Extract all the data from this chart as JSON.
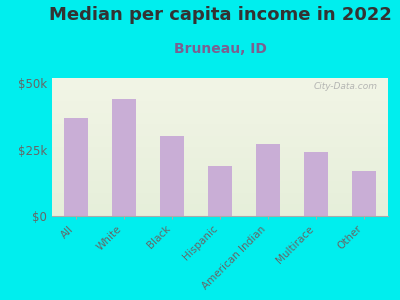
{
  "title": "Median per capita income in 2022",
  "subtitle": "Bruneau, ID",
  "categories": [
    "All",
    "White",
    "Black",
    "Hispanic",
    "American Indian",
    "Multirace",
    "Other"
  ],
  "values": [
    37000,
    44000,
    30000,
    19000,
    27000,
    24000,
    17000
  ],
  "bar_color": "#c9aed6",
  "background_outer": "#00EEEE",
  "background_inner_top": "#f2f5e6",
  "background_inner_bottom": "#e6efda",
  "title_fontsize": 13,
  "title_color": "#333333",
  "subtitle_fontsize": 10,
  "subtitle_color": "#7a6090",
  "tick_label_color": "#666666",
  "ylim": [
    0,
    52000
  ],
  "yticks": [
    0,
    25000,
    50000
  ],
  "ytick_labels": [
    "$0",
    "$25k",
    "$50k"
  ],
  "watermark": "City-Data.com"
}
